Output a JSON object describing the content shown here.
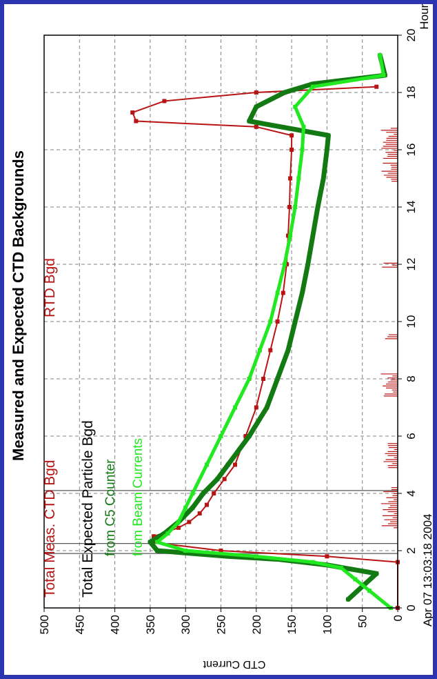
{
  "chart_data": {
    "type": "line",
    "title": "Measured and Expected CTD Backgrounds",
    "timestamp": "Apr 07 13:03:18 2004",
    "xlabel": "Hours",
    "ylabel": "CTD Current",
    "xlim": [
      0,
      20
    ],
    "ylim": [
      0,
      500
    ],
    "x_ticks": [
      0,
      2,
      4,
      6,
      8,
      10,
      12,
      14,
      16,
      18,
      20
    ],
    "y_ticks": [
      0,
      50,
      100,
      150,
      200,
      250,
      300,
      350,
      400,
      450,
      500
    ],
    "grid": true,
    "labels": {
      "total_meas": "Total Meas. CTD Bgd",
      "rtd": "RTD Bgd",
      "total_expected": "Total Expected Particle Bgd",
      "c5": "from C5 Counter",
      "beam": "from Beam Currents"
    },
    "colors": {
      "meas": "#b81414",
      "c5": "#137a13",
      "beam": "#22e822",
      "black": "#000000"
    },
    "series": [
      {
        "name": "Total Meas. CTD Bgd",
        "x": [
          0,
          1.6,
          1.8,
          2.0,
          2.3,
          2.5,
          2.8,
          3.0,
          3.3,
          3.6,
          4.0,
          4.5,
          5.0,
          6.0,
          7.0,
          8.0,
          9.0,
          10.0,
          11.0,
          12.0,
          13.0,
          14.0,
          15.0,
          16.0,
          16.5,
          16.8,
          17.0,
          17.3,
          17.7,
          18.0,
          18.2
        ],
        "y": [
          0,
          0,
          100,
          250,
          350,
          345,
          310,
          295,
          280,
          270,
          260,
          245,
          230,
          215,
          200,
          190,
          180,
          170,
          162,
          157,
          155,
          153,
          152,
          150,
          150,
          200,
          370,
          375,
          330,
          200,
          30
        ]
      },
      {
        "name": "from C5 Counter",
        "x": [
          0.3,
          1.2,
          1.5,
          1.7,
          1.8,
          2.0,
          2.3,
          2.6,
          3.0,
          3.5,
          4.0,
          4.5,
          5.0,
          6.0,
          7.0,
          8.0,
          9.0,
          10.0,
          11.0,
          12.0,
          13.0,
          14.0,
          15.0,
          16.0,
          16.5,
          17.0,
          17.5,
          18.0,
          18.3,
          18.6,
          19.3
        ],
        "y": [
          70,
          30,
          100,
          170,
          240,
          340,
          350,
          330,
          310,
          290,
          275,
          255,
          240,
          210,
          185,
          170,
          155,
          145,
          135,
          127,
          120,
          113,
          105,
          100,
          98,
          210,
          200,
          160,
          120,
          18,
          25
        ]
      },
      {
        "name": "from Beam Currents",
        "x": [
          0,
          0.6,
          1.0,
          1.4,
          1.6,
          1.8,
          2.0,
          2.3,
          2.6,
          3.0,
          3.5,
          4.0,
          5.0,
          6.0,
          7.0,
          8.0,
          9.0,
          10.0,
          11.0,
          12.0,
          13.0,
          14.0,
          15.0,
          16.0,
          16.8,
          17.5,
          18.2,
          18.6,
          19.3
        ],
        "y": [
          10,
          40,
          60,
          80,
          120,
          200,
          300,
          340,
          325,
          310,
          300,
          290,
          270,
          250,
          230,
          210,
          195,
          180,
          170,
          160,
          152,
          145,
          140,
          135,
          133,
          145,
          120,
          20,
          25
        ]
      }
    ]
  }
}
